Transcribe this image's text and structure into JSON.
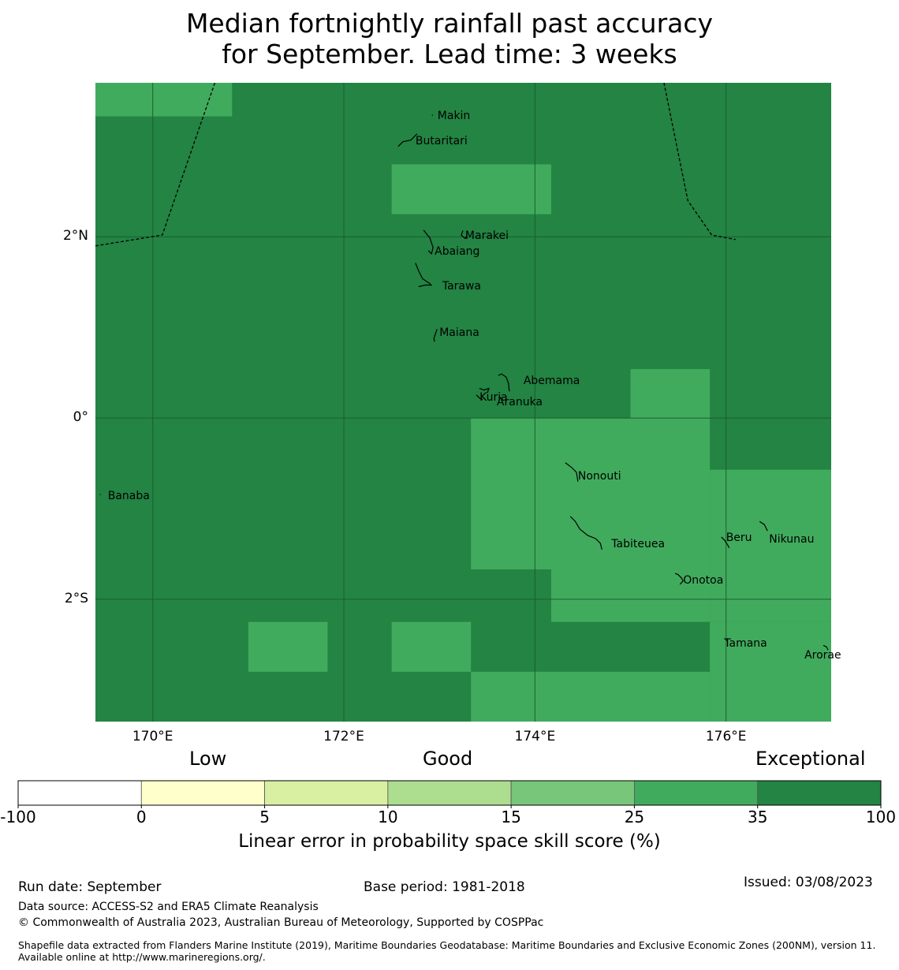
{
  "title": {
    "line1": "Median fortnightly rainfall past accuracy",
    "line2": "for September. Lead time: 3 weeks"
  },
  "map": {
    "lon_range": [
      169.4,
      177.1
    ],
    "lat_range": [
      -3.35,
      3.7
    ],
    "x_ticks": [
      {
        "lon": 170,
        "label": "170°E"
      },
      {
        "lon": 172,
        "label": "172°E"
      },
      {
        "lon": 174,
        "label": "174°E"
      },
      {
        "lon": 176,
        "label": "176°E"
      }
    ],
    "y_ticks": [
      {
        "lat": 2,
        "label": "2°N"
      },
      {
        "lat": 0,
        "label": "0°"
      },
      {
        "lat": -2,
        "label": "2°S"
      }
    ],
    "colors": {
      "dark": "#238443",
      "medium": "#41ab5d",
      "grid": "#1d5e30"
    },
    "medium_cells": [
      {
        "lon": [
          169.4,
          170.83
        ],
        "lat": [
          3.33,
          3.7
        ]
      },
      {
        "lon": [
          172.5,
          174.17
        ],
        "lat": [
          2.25,
          2.8
        ]
      },
      {
        "lon": [
          175.0,
          175.83
        ],
        "lat": [
          0.0,
          0.54
        ]
      },
      {
        "lon": [
          173.33,
          175.83
        ],
        "lat": [
          -1.67,
          0.0
        ]
      },
      {
        "lon": [
          175.83,
          177.1
        ],
        "lat": [
          -2.25,
          -0.57
        ]
      },
      {
        "lon": [
          174.17,
          175.83
        ],
        "lat": [
          -2.25,
          -1.67
        ]
      },
      {
        "lon": [
          171.0,
          171.83
        ],
        "lat": [
          -2.8,
          -2.25
        ]
      },
      {
        "lon": [
          172.5,
          173.33
        ],
        "lat": [
          -2.8,
          -2.25
        ]
      },
      {
        "lon": [
          175.83,
          177.1
        ],
        "lat": [
          -3.35,
          -2.25
        ]
      },
      {
        "lon": [
          173.33,
          175.83
        ],
        "lat": [
          -3.35,
          -2.8
        ]
      }
    ],
    "boundaries": [
      [
        [
          169.4,
          1.9
        ],
        [
          170.1,
          2.02
        ],
        [
          170.65,
          3.7
        ]
      ],
      [
        [
          175.35,
          3.7
        ],
        [
          175.6,
          2.4
        ],
        [
          175.85,
          2.02
        ],
        [
          176.1,
          1.97
        ]
      ]
    ],
    "islands": [
      {
        "name": "Makin",
        "lon": 172.98,
        "lat": 3.33
      },
      {
        "name": "Butaritari",
        "lon": 172.75,
        "lat": 3.05
      },
      {
        "name": "Marakei",
        "lon": 173.27,
        "lat": 2.0
      },
      {
        "name": "Abaiang",
        "lon": 172.95,
        "lat": 1.83
      },
      {
        "name": "Tarawa",
        "lon": 173.03,
        "lat": 1.45
      },
      {
        "name": "Maiana",
        "lon": 173.0,
        "lat": 0.93
      },
      {
        "name": "Abemama",
        "lon": 173.88,
        "lat": 0.4
      },
      {
        "name": "Kuria",
        "lon": 173.42,
        "lat": 0.22
      },
      {
        "name": "Aranuka",
        "lon": 173.6,
        "lat": 0.17
      },
      {
        "name": "Nonouti",
        "lon": 174.45,
        "lat": -0.65
      },
      {
        "name": "Banaba",
        "lon": 169.53,
        "lat": -0.87
      },
      {
        "name": "Tabiteuea",
        "lon": 174.8,
        "lat": -1.4
      },
      {
        "name": "Beru",
        "lon": 176.0,
        "lat": -1.33
      },
      {
        "name": "Nikunau",
        "lon": 176.45,
        "lat": -1.35
      },
      {
        "name": "Onotoa",
        "lon": 175.55,
        "lat": -1.8
      },
      {
        "name": "Tamana",
        "lon": 175.98,
        "lat": -2.5
      },
      {
        "name": "Arorae",
        "lon": 176.82,
        "lat": -2.63
      }
    ]
  },
  "colorbar": {
    "categories": [
      "Low",
      "Good",
      "Exceptional"
    ],
    "segments": [
      {
        "color": "#ffffff"
      },
      {
        "color": "#ffffcc"
      },
      {
        "color": "#d9f0a3"
      },
      {
        "color": "#addd8e"
      },
      {
        "color": "#78c679"
      },
      {
        "color": "#41ab5d"
      },
      {
        "color": "#238443"
      }
    ],
    "ticks": [
      "-100",
      "0",
      "5",
      "10",
      "15",
      "25",
      "35",
      "100"
    ],
    "label": "Linear error in probability space skill score (%)"
  },
  "footer": {
    "run_date": "Run date: September",
    "base_period": "Base period: 1981-2018",
    "issued": "Issued: 03/08/2023",
    "data_source": "Data source: ACCESS-S2 and ERA5 Climate Reanalysis",
    "copyright": "© Commonwealth of Australia 2023, Australian Bureau of Meteorology, Supported by COSPPac",
    "shapefile": "Shapefile data extracted from Flanders Marine Institute (2019), Maritime Boundaries Geodatabase: Maritime Boundaries and Exclusive Economic Zones (200NM), version 11. Available online at http://www.marineregions.org/."
  }
}
